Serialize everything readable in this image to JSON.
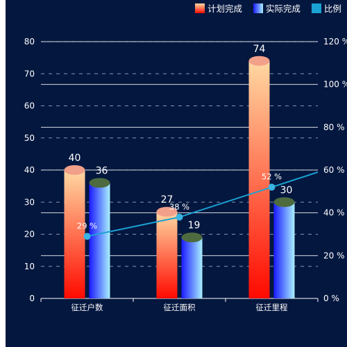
{
  "chart_data": {
    "type": "bar",
    "categories": [
      "征迁户数",
      "征迁面积",
      "征迁里程"
    ],
    "series": [
      {
        "name": "计划完成",
        "kind": "bar",
        "values": [
          40,
          27,
          74
        ]
      },
      {
        "name": "实际完成",
        "kind": "bar",
        "values": [
          36,
          19,
          30
        ]
      },
      {
        "name": "比例",
        "kind": "line",
        "axis": "right",
        "values": [
          29,
          38,
          52
        ],
        "unit": "%"
      }
    ],
    "left_axis": {
      "min": 0,
      "max": 80,
      "ticks": [
        0,
        10,
        20,
        30,
        40,
        50,
        60,
        70,
        80
      ]
    },
    "right_axis": {
      "min": 0,
      "max": 120,
      "ticks": [
        0,
        20,
        40,
        60,
        80,
        100,
        120
      ],
      "suffix": " %"
    },
    "legend_position": "top-right",
    "colors": {
      "background": "#04173f",
      "plan_top": "#ffd9a3",
      "plan_bottom": "#ff0a00",
      "plan_cap": "#f2a08a",
      "actual_left": "#1a1aff",
      "actual_right": "#a9f0ff",
      "actual_cap": "#4d6b3e",
      "ratio_line": "#1aa2d4",
      "ratio_point": "#3ab4e3",
      "grid_solid": "#ffffff",
      "grid_dashed": "#b7bfd2"
    }
  }
}
